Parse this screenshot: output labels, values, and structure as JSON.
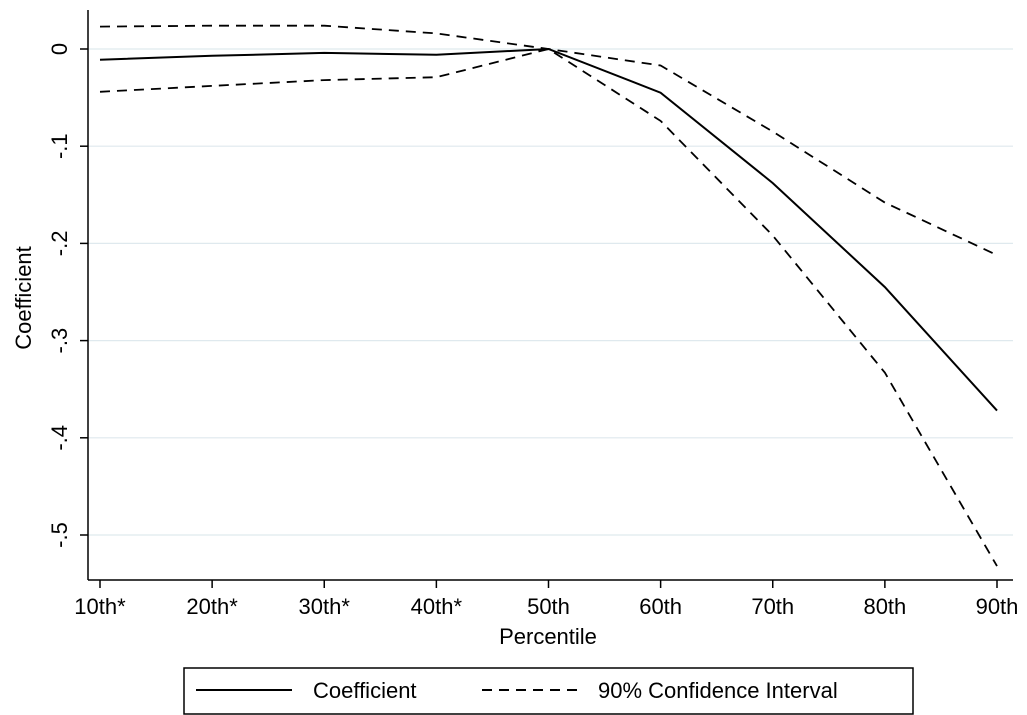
{
  "chart_data": {
    "type": "line",
    "title": "",
    "xlabel": "Percentile",
    "ylabel": "Coefficient",
    "categories": [
      "10th*",
      "20th*",
      "30th*",
      "40th*",
      "50th",
      "60th",
      "70th",
      "80th",
      "90th"
    ],
    "ylim": [
      -0.54,
      0.04
    ],
    "yticks": [
      0,
      -0.1,
      -0.2,
      -0.3,
      -0.4,
      -0.5
    ],
    "ytick_labels": [
      "0",
      "-.1",
      "-.2",
      "-.3",
      "-.4",
      "-.5"
    ],
    "grid": true,
    "legend_position": "bottom",
    "series": [
      {
        "name": "Coefficient",
        "style": "solid",
        "color": "#000000",
        "values": [
          -0.011,
          -0.007,
          -0.004,
          -0.006,
          0.0,
          -0.045,
          -0.138,
          -0.245,
          -0.372
        ]
      },
      {
        "name": "90% Confidence Interval",
        "style": "dashed",
        "color": "#000000",
        "bands": [
          [
            0.023,
            0.024,
            0.024,
            0.016,
            0.0,
            -0.017,
            -0.085,
            -0.158,
            -0.212
          ],
          [
            -0.044,
            -0.038,
            -0.032,
            -0.029,
            0.0,
            -0.074,
            -0.192,
            -0.333,
            -0.532
          ]
        ]
      }
    ]
  },
  "colors": {
    "grid": "#dfe9ee",
    "axis": "#000000",
    "background": "#ffffff"
  }
}
